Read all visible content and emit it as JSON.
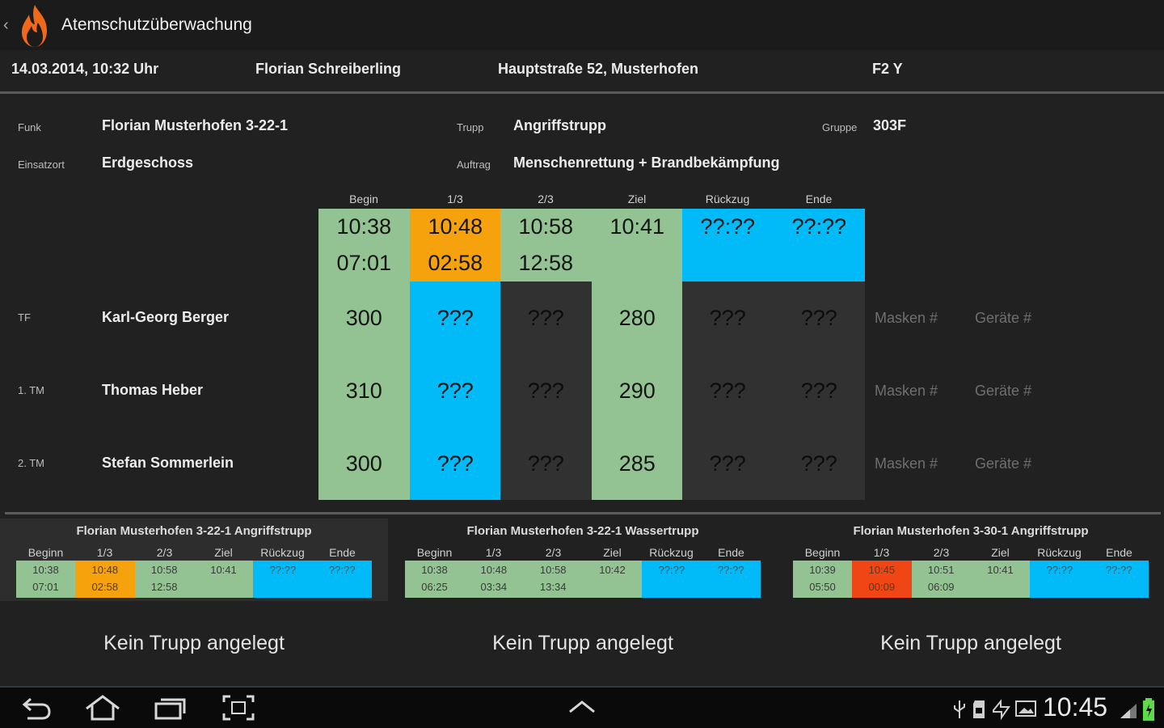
{
  "app": {
    "title": "Atemschutzüberwachung"
  },
  "info": {
    "datetime": "14.03.2014, 10:32 Uhr",
    "person": "Florian Schreiberling",
    "address": "Hauptstraße 52, Musterhofen",
    "code": "F2 Y"
  },
  "details": {
    "funk_label": "Funk",
    "funk_value": "Florian Musterhofen 3-22-1",
    "trupp_label": "Trupp",
    "trupp_value": "Angriffstrupp",
    "gruppe_label": "Gruppe",
    "gruppe_value": "303F",
    "einsatzort_label": "Einsatzort",
    "einsatzort_value": "Erdgeschoss",
    "auftrag_label": "Auftrag",
    "auftrag_value": "Menschenrettung + Brandbekämpfung"
  },
  "grid": {
    "headers": [
      "Begin",
      "1/3",
      "2/3",
      "Ziel",
      "Rückzug",
      "Ende"
    ],
    "times_row1": [
      "10:38",
      "10:48",
      "10:58",
      "10:41",
      "??:??",
      "??:??"
    ],
    "times_row2": [
      "07:01",
      "02:58",
      "12:58"
    ],
    "members": [
      {
        "role": "TF",
        "name": "Karl-Georg Berger",
        "values": [
          "300",
          "???",
          "???",
          "280",
          "???",
          "???"
        ],
        "mask": "Masken #",
        "device": "Geräte #"
      },
      {
        "role": "1. TM",
        "name": "Thomas Heber",
        "values": [
          "310",
          "???",
          "???",
          "290",
          "???",
          "???"
        ],
        "mask": "Masken #",
        "device": "Geräte #"
      },
      {
        "role": "2. TM",
        "name": "Stefan Sommerlein",
        "values": [
          "300",
          "???",
          "???",
          "285",
          "???",
          "???"
        ],
        "mask": "Masken #",
        "device": "Geräte #"
      }
    ]
  },
  "panels": [
    {
      "title": "Florian Musterhofen 3-22-1 Angriffstrupp",
      "headers": [
        "Beginn",
        "1/3",
        "2/3",
        "Ziel",
        "Rückzug",
        "Ende"
      ],
      "row1": [
        "10:38",
        "10:48",
        "10:58",
        "10:41",
        "??:??",
        "??:??"
      ],
      "row2": [
        "07:01",
        "02:58",
        "12:58",
        "",
        "",
        ""
      ]
    },
    {
      "title": "Florian Musterhofen 3-22-1 Wassertrupp",
      "headers": [
        "Beginn",
        "1/3",
        "2/3",
        "Ziel",
        "Rückzug",
        "Ende"
      ],
      "row1": [
        "10:38",
        "10:48",
        "10:58",
        "10:42",
        "??:??",
        "??:??"
      ],
      "row2": [
        "06:25",
        "03:34",
        "13:34",
        "",
        "",
        ""
      ]
    },
    {
      "title": "Florian Musterhofen 3-30-1 Angriffstrupp",
      "headers": [
        "Beginn",
        "1/3",
        "2/3",
        "Ziel",
        "Rückzug",
        "Ende"
      ],
      "row1": [
        "10:39",
        "10:45",
        "10:51",
        "10:41",
        "??:??",
        "??:??"
      ],
      "row2": [
        "05:50",
        "00:09",
        "06:09",
        "",
        "",
        ""
      ]
    }
  ],
  "empty_slots": [
    "Kein Trupp angelegt",
    "Kein Trupp angelegt",
    "Kein Trupp angelegt"
  ],
  "statusbar": {
    "clock": "10:45"
  },
  "colors": {
    "green": "#93c393",
    "orange": "#f5a20c",
    "blue": "#00bbf7",
    "red": "#f04514",
    "gray": "#313131"
  }
}
